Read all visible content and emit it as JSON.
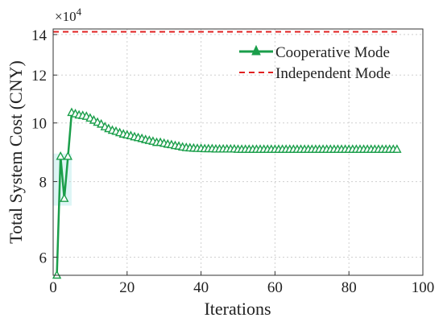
{
  "chart_data": {
    "type": "line",
    "xlabel": "Iterations",
    "ylabel": "Total System Cost (CNY)",
    "y_scale": "log",
    "y_multiplier_label": "×10",
    "y_multiplier_exp": "4",
    "xlim": [
      0,
      100
    ],
    "ylim": [
      5.6,
      14.3
    ],
    "xticks": [
      0,
      20,
      40,
      60,
      80,
      100
    ],
    "xtick_labels": [
      "0",
      "20",
      "40",
      "60",
      "80",
      "100"
    ],
    "yticks": [
      6,
      8,
      10,
      12,
      14
    ],
    "ytick_labels": [
      "6",
      "8",
      "10",
      "12",
      "14"
    ],
    "grid": "dotted",
    "legend_position": "top-right",
    "colors": {
      "cooperative": "#1a9e4a",
      "independent": "#e02020",
      "highlight": "#d9f4f4"
    },
    "series": [
      {
        "name": "Cooperative Mode",
        "style": "solid-line-triangle-markers",
        "x": [
          1,
          2,
          3,
          4,
          5,
          6,
          7,
          8,
          9,
          10,
          11,
          12,
          13,
          14,
          15,
          16,
          17,
          18,
          19,
          20,
          21,
          22,
          23,
          24,
          25,
          26,
          27,
          28,
          29,
          30,
          31,
          32,
          33,
          34,
          35,
          36,
          37,
          38,
          39,
          40,
          41,
          42,
          43,
          44,
          45,
          46,
          47,
          48,
          49,
          50,
          51,
          52,
          53,
          54,
          55,
          56,
          57,
          58,
          59,
          60,
          61,
          62,
          63,
          64,
          65,
          66,
          67,
          68,
          69,
          70,
          71,
          72,
          73,
          74,
          75,
          76,
          77,
          78,
          79,
          80,
          81,
          82,
          83,
          84,
          85,
          86,
          87,
          88,
          89,
          90,
          91,
          92,
          93
        ],
        "values": [
          5.6,
          8.8,
          7.5,
          8.8,
          10.4,
          10.35,
          10.3,
          10.28,
          10.25,
          10.18,
          10.1,
          10.02,
          9.95,
          9.85,
          9.78,
          9.72,
          9.68,
          9.63,
          9.58,
          9.55,
          9.52,
          9.48,
          9.45,
          9.42,
          9.38,
          9.35,
          9.32,
          9.28,
          9.28,
          9.25,
          9.22,
          9.2,
          9.17,
          9.15,
          9.12,
          9.1,
          9.09,
          9.08,
          9.07,
          9.07,
          9.06,
          9.06,
          9.06,
          9.05,
          9.05,
          9.05,
          9.05,
          9.05,
          9.05,
          9.04,
          9.04,
          9.04,
          9.04,
          9.04,
          9.04,
          9.04,
          9.04,
          9.04,
          9.04,
          9.04,
          9.04,
          9.04,
          9.04,
          9.04,
          9.04,
          9.04,
          9.04,
          9.04,
          9.04,
          9.04,
          9.04,
          9.04,
          9.04,
          9.04,
          9.04,
          9.04,
          9.04,
          9.04,
          9.04,
          9.04,
          9.04,
          9.04,
          9.04,
          9.04,
          9.04,
          9.04,
          9.04,
          9.04,
          9.04,
          9.04,
          9.04,
          9.04,
          9.04
        ]
      },
      {
        "name": "Independent Mode",
        "style": "dashed-line",
        "x": [
          0,
          93
        ],
        "values": [
          14.15,
          14.15
        ]
      }
    ]
  }
}
